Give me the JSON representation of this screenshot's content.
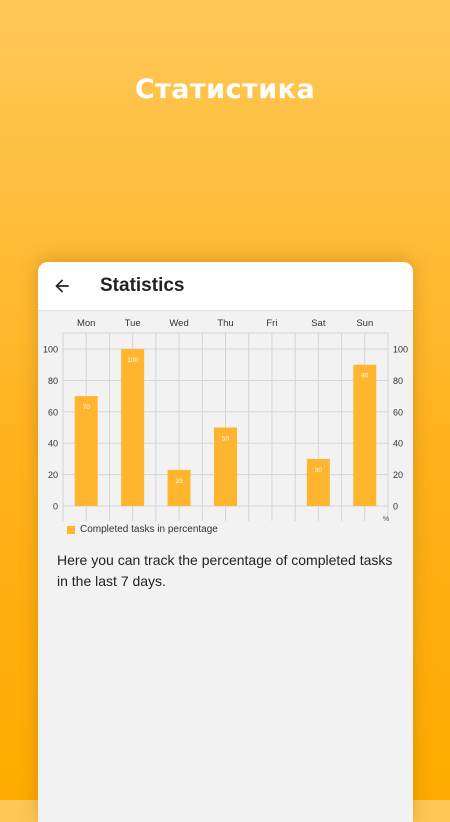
{
  "promo": {
    "title": "Статистика"
  },
  "appbar": {
    "back_icon": "arrow-left-icon",
    "title": "Statistics"
  },
  "chart_data": {
    "type": "bar",
    "categories": [
      "Mon",
      "Tue",
      "Wed",
      "Thu",
      "Fri",
      "Sat",
      "Sun"
    ],
    "values": [
      70,
      100,
      23,
      50,
      0,
      30,
      90
    ],
    "value_labels": [
      "70",
      "100",
      "23",
      "50",
      "",
      "30",
      "90"
    ],
    "y_ticks": [
      "0",
      "20",
      "40",
      "60",
      "80",
      "100"
    ],
    "ylim": [
      0,
      100
    ],
    "unit_label": "%",
    "legend": "Completed tasks in percentage",
    "legend_position": "bottom-left",
    "grid": true,
    "colors": {
      "bar": "#FFB62E",
      "grid": "#d4d4d4",
      "label": "#ffffff"
    }
  },
  "description": "Here you can track the percentage of completed tasks in the last 7 days."
}
